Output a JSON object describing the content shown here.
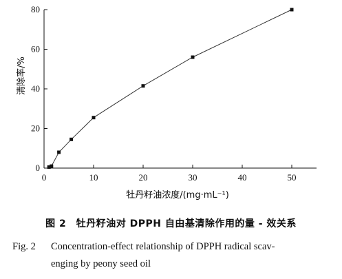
{
  "chart_data": {
    "type": "line",
    "x": [
      1,
      1.5,
      3,
      5.5,
      10,
      20,
      30,
      50
    ],
    "series": [
      {
        "values": [
          0.5,
          1,
          8,
          14.5,
          25.5,
          41.5,
          56,
          80
        ]
      }
    ],
    "xlabel": "牡丹籽油浓度/(mg·mL⁻¹)",
    "ylabel": "清除率/%",
    "xlim": [
      0,
      50
    ],
    "ylim": [
      0,
      80
    ],
    "xticks": [
      "0",
      "10",
      "20",
      "30",
      "40",
      "50"
    ],
    "yticks": [
      "0",
      "20",
      "40",
      "60",
      "80"
    ],
    "grid": false,
    "colors": {
      "line": "#333333",
      "marker": "#111111"
    }
  },
  "caption": {
    "cn": "图 2　牡丹籽油对 DPPH 自由基清除作用的量 - 效关系",
    "en_label": "Fig. 2",
    "en_line1": "Concentration-effect relationship of DPPH radical scav-",
    "en_line2": "enging by peony seed oil"
  }
}
